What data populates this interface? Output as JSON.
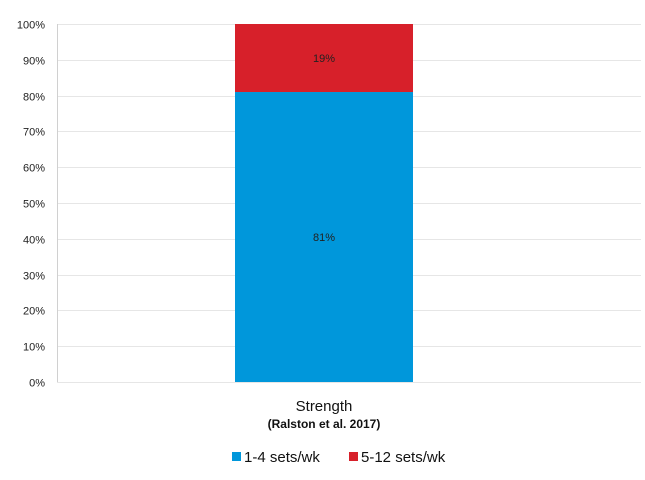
{
  "chart_data": {
    "type": "bar",
    "stacked": true,
    "categories": [
      "Strength"
    ],
    "category_subtitles": [
      "(Ralston et al. 2017)"
    ],
    "series": [
      {
        "name": "1-4 sets/wk",
        "values": [
          81
        ],
        "labels": [
          "81%"
        ],
        "color": "#0097db"
      },
      {
        "name": "5-12 sets/wk",
        "values": [
          19
        ],
        "labels": [
          "19%"
        ],
        "color": "#d7202a"
      }
    ],
    "ylim": [
      0,
      100
    ],
    "yticks": [
      0,
      10,
      20,
      30,
      40,
      50,
      60,
      70,
      80,
      90,
      100
    ],
    "ytick_labels": [
      "0%",
      "10%",
      "20%",
      "30%",
      "40%",
      "50%",
      "60%",
      "70%",
      "80%",
      "90%",
      "100%"
    ],
    "grid": true,
    "legend_position": "bottom"
  }
}
